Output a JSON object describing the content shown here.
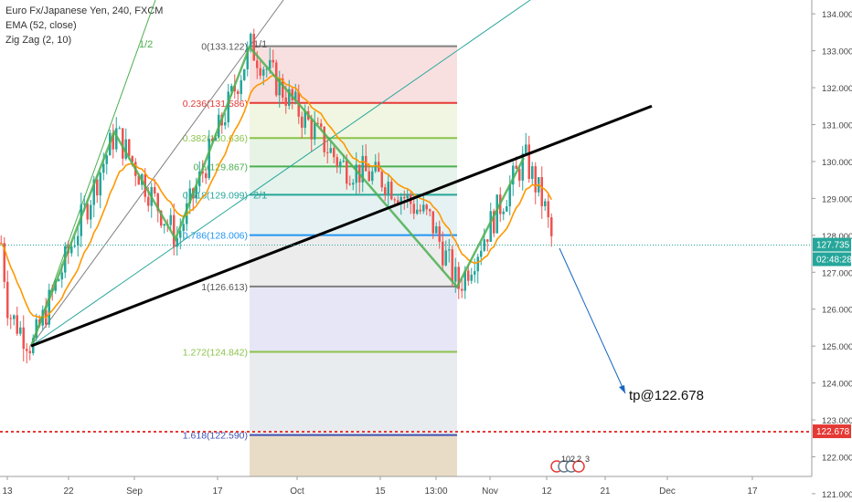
{
  "legend": {
    "symbol": "Euro Fx/Japanese Yen, 240, FXCM",
    "ema": "EMA (52, close)",
    "zigzag": "Zig Zag (2, 10)"
  },
  "chart_data": {
    "type": "candlestick",
    "symbol": "Euro Fx/Japanese Yen",
    "interval": "240",
    "source": "FXCM",
    "ylim": [
      120.8,
      134.4
    ],
    "y_ticks": [
      "134.000",
      "133.000",
      "132.000",
      "131.000",
      "130.000",
      "129.000",
      "128.000",
      "127.000",
      "126.000",
      "125.000",
      "124.000",
      "123.000",
      "122.000",
      "121.000"
    ],
    "x_ticks": [
      "13",
      "22",
      "Sep",
      "17",
      "Oct",
      "15",
      "13:00",
      "Nov",
      "12",
      "21",
      "Dec",
      "17"
    ],
    "current_price": {
      "label": "127.735",
      "value": 127.735,
      "timer": "02:48:28"
    },
    "target": {
      "label": "122.678",
      "value": 122.678,
      "annotation": "tp@122.678"
    },
    "fib_levels": [
      {
        "ratio": 0,
        "value": 133.122,
        "label": "0(133.122)",
        "color": "#808080"
      },
      {
        "ratio": 0.236,
        "value": 131.586,
        "label": "0.236(131.586)",
        "color": "#e53935"
      },
      {
        "ratio": 0.382,
        "value": 130.636,
        "label": "0.382(130.636)",
        "color": "#8bc34a"
      },
      {
        "ratio": 0.5,
        "value": 129.867,
        "label": "0.5(129.867)",
        "color": "#4caf50"
      },
      {
        "ratio": 0.618,
        "value": 129.099,
        "label": "0.618(129.099)",
        "color": "#26a69a"
      },
      {
        "ratio": 0.786,
        "value": 128.006,
        "label": "0.786(128.006)",
        "color": "#2196f3"
      },
      {
        "ratio": 1,
        "value": 126.613,
        "label": "1(126.613)",
        "color": "#808080"
      },
      {
        "ratio": 1.272,
        "value": 124.842,
        "label": "1.272(124.842)",
        "color": "#8bc34a"
      },
      {
        "ratio": 1.618,
        "value": 122.59,
        "label": "1.618(122.590)",
        "color": "#3f51b5"
      }
    ],
    "fan_labels": [
      "1/2",
      "1/1",
      "2/1"
    ],
    "event_label": "102",
    "zigzag": [
      125.0,
      130.8,
      127.9,
      133.1,
      126.6,
      130.1
    ],
    "colors": {
      "up": "#26a69a",
      "down": "#ef5350",
      "ema": "#ff9800",
      "zigzag": "#4caf50",
      "trend": "#000000",
      "target": "#e53935",
      "fan1": "#4caf50",
      "fan2": "#808080",
      "fan3": "#26a69a",
      "tp_arrow": "#1565c0"
    }
  }
}
